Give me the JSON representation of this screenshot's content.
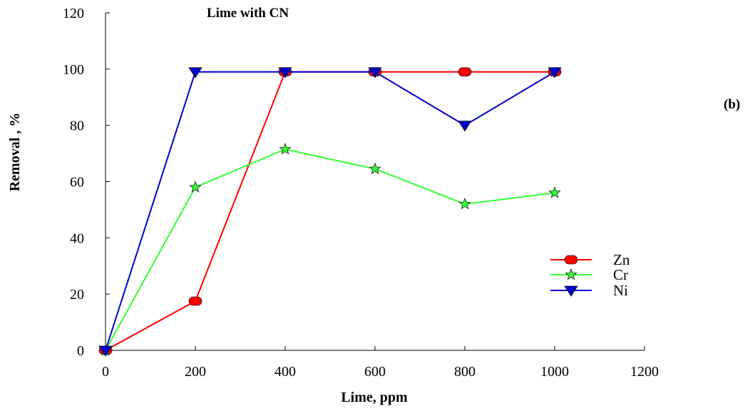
{
  "chart_data": {
    "type": "line",
    "title": "Lime with CN",
    "panel_label": "(b)",
    "xlabel": "Lime, ppm",
    "ylabel": "Removal , %",
    "xlim": [
      0,
      1200
    ],
    "ylim": [
      0,
      120
    ],
    "x_ticks": [
      "0",
      "200",
      "400",
      "600",
      "800",
      "1000",
      "1200"
    ],
    "y_ticks": [
      "0",
      "20",
      "40",
      "60",
      "80",
      "100",
      "120"
    ],
    "grid": false,
    "legend_position": "right",
    "series": [
      {
        "name": "Zn",
        "color": "#ff0000",
        "marker": "circle",
        "x": [
          0,
          200,
          400,
          600,
          800,
          1000
        ],
        "y": [
          0,
          17.5,
          99,
          99,
          99,
          99
        ]
      },
      {
        "name": "Cr",
        "color": "#33ff33",
        "marker": "star",
        "x": [
          0,
          200,
          400,
          600,
          800,
          1000
        ],
        "y": [
          0,
          58,
          71.5,
          64.5,
          52,
          56
        ]
      },
      {
        "name": "Ni",
        "color": "#0000cc",
        "marker": "triangle-down",
        "x": [
          0,
          200,
          400,
          600,
          800,
          1000
        ],
        "y": [
          0,
          99,
          99,
          99,
          80,
          99
        ]
      }
    ]
  }
}
